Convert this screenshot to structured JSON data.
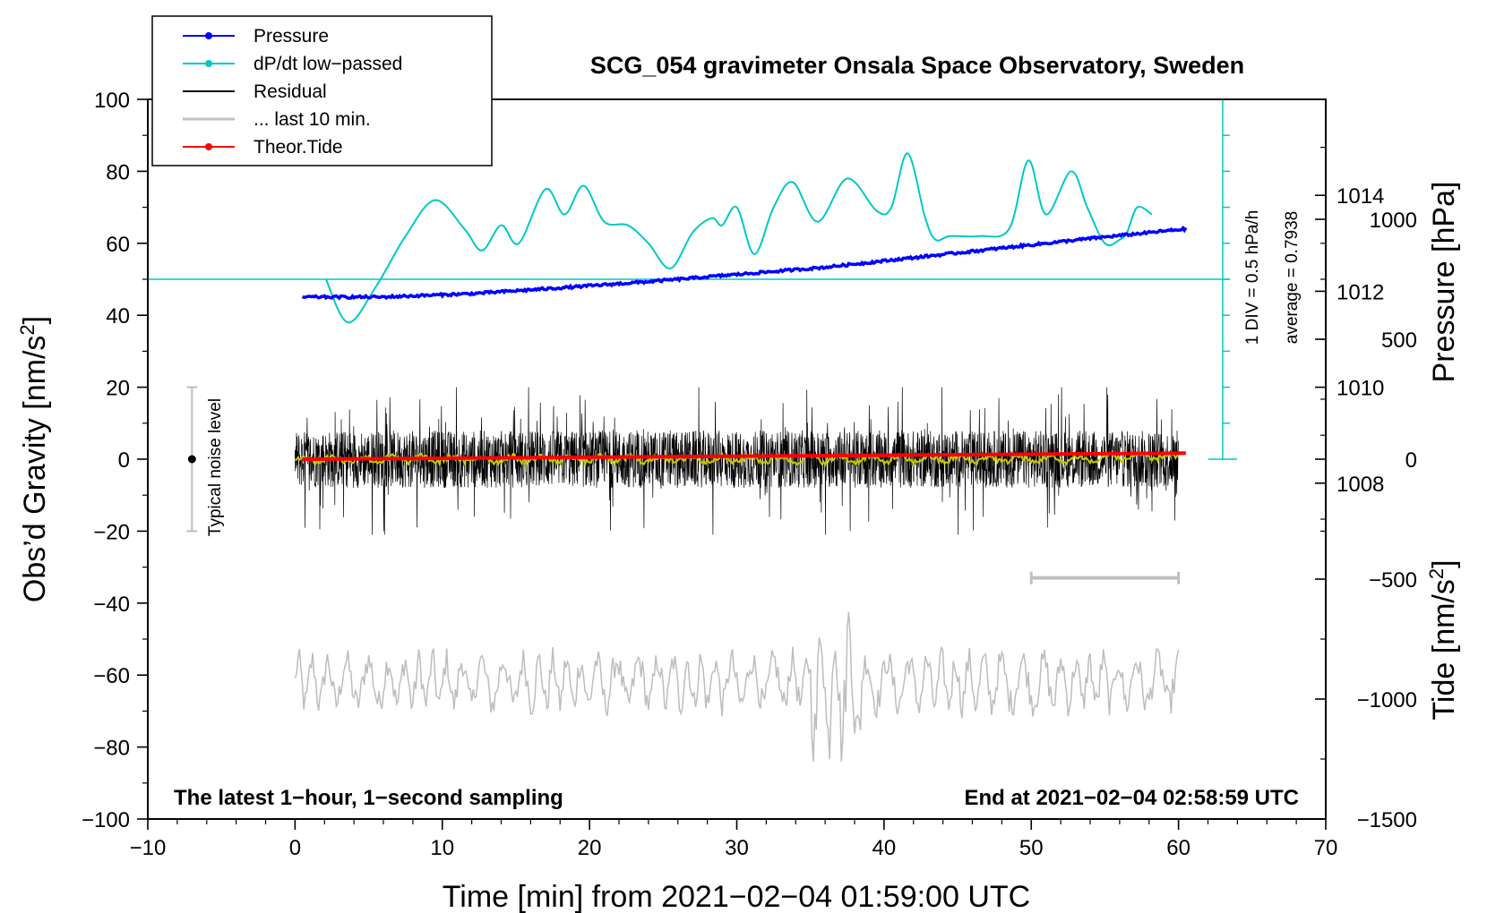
{
  "chart_data": {
    "type": "line",
    "title": "SCG_054 gravimeter Onsala Space Observatory, Sweden",
    "xlabel": "Time [min] from 2021−02−04 01:59:00 UTC",
    "ylabel_main": "Obs’d Gravity [nm/s",
    "ylabel_main_sup": "2",
    "ylabel_main_end": "]",
    "ylabel_pressure": "Pressure [hPa]",
    "ylabel_tide": "Tide [nm/s",
    "ylabel_tide_sup": "2",
    "ylabel_tide_end": "]",
    "xlim": [
      -10,
      70
    ],
    "ylim": [
      -100,
      100
    ],
    "x_ticks": [
      -10,
      0,
      10,
      20,
      30,
      40,
      50,
      60,
      70
    ],
    "x_tick_labels": [
      "−10",
      "0",
      "10",
      "20",
      "30",
      "40",
      "50",
      "60",
      "70"
    ],
    "y_ticks": [
      -100,
      -80,
      -60,
      -40,
      -20,
      0,
      20,
      40,
      60,
      80,
      100
    ],
    "y_tick_labels": [
      "−100",
      "−80",
      "−60",
      "−40",
      "−20",
      "0",
      "20",
      "40",
      "60",
      "80",
      "100"
    ],
    "pressure_axis": {
      "ylim": [
        1001,
        1016
      ],
      "ticks": [
        1008,
        1010,
        1012,
        1014
      ],
      "tick_labels": [
        "1008",
        "1010",
        "1012",
        "1014"
      ]
    },
    "tide_axis": {
      "ylim": [
        -1500,
        1500
      ],
      "ticks": [
        -1500,
        -1000,
        -500,
        0,
        500,
        1000
      ],
      "tick_labels": [
        "−1500",
        "−1000",
        "−500",
        "0",
        "500",
        "1000"
      ]
    },
    "series": [
      {
        "name": "Pressure",
        "color": "#0000ff",
        "axis": "pressure",
        "x": [
          0.5,
          6,
          12,
          18,
          24,
          30,
          36,
          42,
          48,
          54,
          60.5
        ],
        "values": [
          1011.88,
          1011.88,
          1011.95,
          1012.07,
          1012.2,
          1012.35,
          1012.5,
          1012.7,
          1012.9,
          1013.1,
          1013.3
        ]
      },
      {
        "name": "dP/dt low−passed",
        "color": "#00c8c8",
        "axis": "gravity",
        "x": [
          2.1,
          3.6,
          5.5,
          7.5,
          9.5,
          11.5,
          12.7,
          14.0,
          15.2,
          17.0,
          18.3,
          19.6,
          21.0,
          22.6,
          24.0,
          25.5,
          27.0,
          28.3,
          29.0,
          30.0,
          31.2,
          32.5,
          33.8,
          35.5,
          37.5,
          39.5,
          40.5,
          41.6,
          42.8,
          43.5,
          44.5,
          46.5,
          48.5,
          49.8,
          51.0,
          52.7,
          53.8,
          55.0,
          56.0,
          56.5,
          57.2,
          58.2
        ],
        "values": [
          50,
          38,
          48,
          62,
          72,
          64,
          58,
          65,
          60,
          75,
          68,
          76,
          66,
          65,
          60,
          53,
          63,
          67,
          65,
          70,
          57,
          70,
          77,
          66,
          78,
          69,
          70,
          85,
          67,
          61,
          62,
          62,
          64,
          83,
          68,
          80,
          70,
          60,
          61,
          63,
          70,
          68
        ]
      },
      {
        "name": "Residual",
        "color": "#000000",
        "axis": "gravity",
        "x_range": [
          0,
          60
        ],
        "values_range": [
          -21,
          20
        ]
      },
      {
        "name": "... last 10 min.",
        "color": "#c0c0c0",
        "axis": "gravity",
        "x_range": [
          50,
          60
        ],
        "values": [
          -33,
          -33
        ]
      },
      {
        "name": "Theor.Tide",
        "color": "#ff0000",
        "axis": "tide",
        "x": [
          0.5,
          60.5
        ],
        "values": [
          0,
          25
        ]
      }
    ],
    "low_passed_overlay": {
      "color": "#c8c800",
      "values": [
        0,
        0
      ]
    },
    "tide_residual": {
      "color": "#bdbdbd",
      "values_range": [
        -84,
        -42
      ]
    },
    "reference_line": {
      "value": 50,
      "label": "average = 0.7938"
    },
    "scale_bar": {
      "label": "1 DIV = 0.5 hPa/h",
      "x": 63,
      "range": [
        0,
        100
      ]
    },
    "noise_bar": {
      "label": "Typical noise level",
      "x": -7,
      "range": [
        -20,
        20
      ]
    },
    "annotations": {
      "left_note": "The latest 1−hour, 1−second sampling",
      "right_note": "End at 2021−02−04 02:58:59 UTC"
    },
    "legend": [
      {
        "label": "Pressure",
        "color": "#0000ff",
        "style": "line-dot"
      },
      {
        "label": "dP/dt low−passed",
        "color": "#00c8c8",
        "style": "line-dot"
      },
      {
        "label": "Residual",
        "color": "#000000",
        "style": "line"
      },
      {
        "label": "... last 10 min.",
        "color": "#c0c0c0",
        "style": "line"
      },
      {
        "label": "Theor.Tide",
        "color": "#ff0000",
        "style": "line-dot"
      }
    ]
  }
}
